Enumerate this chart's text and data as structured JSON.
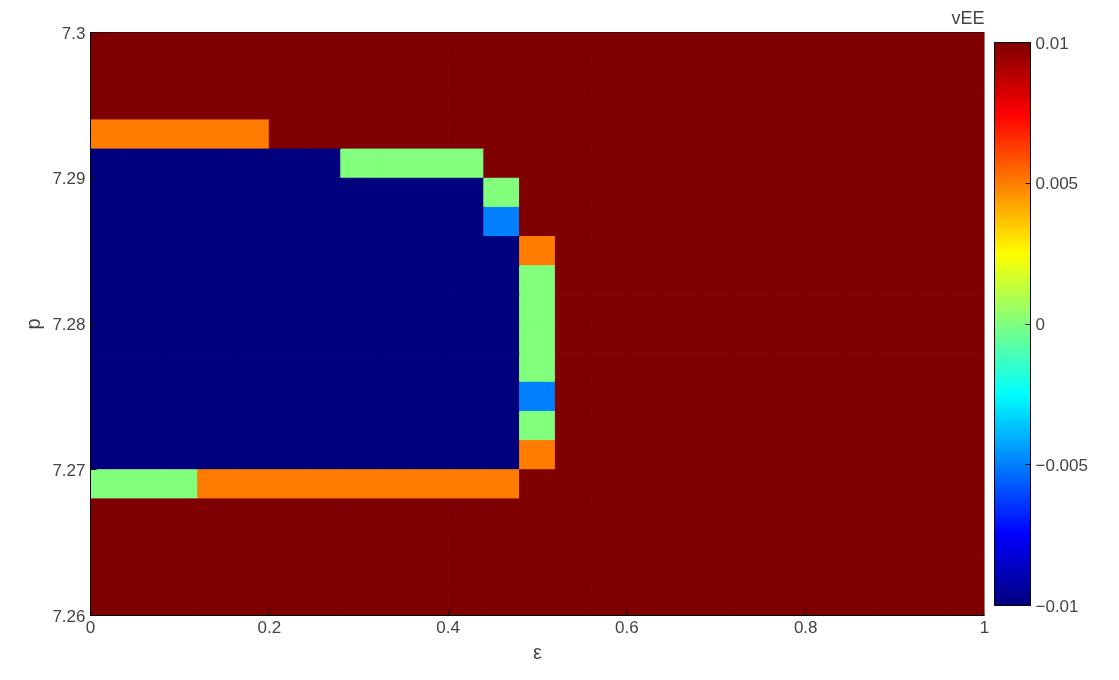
{
  "chart_data": {
    "type": "heatmap",
    "xlabel": "ε",
    "ylabel": "p",
    "clabel": "vEE",
    "xlim": [
      0,
      1
    ],
    "xticks": [
      0,
      0.2,
      0.4,
      0.6,
      0.8,
      1
    ],
    "ylim": [
      7.26,
      7.3
    ],
    "yticks": [
      7.26,
      7.27,
      7.28,
      7.29,
      7.3
    ],
    "clim": [
      -0.01,
      0.01
    ],
    "cticks": [
      -0.01,
      -0.005,
      0,
      0.005,
      0.01
    ],
    "cells": [
      [
        0.01,
        0.01,
        0.01,
        0.01,
        0.01,
        0.01,
        0.01,
        0.01,
        0.01,
        0.01,
        0.01,
        0.01,
        0.01,
        0.01,
        0.01,
        0.01,
        0.01,
        0.01,
        0.01,
        0.01,
        0.01,
        0.01,
        0.01,
        0.01,
        0.01
      ],
      [
        0.01,
        0.01,
        0.01,
        0.01,
        0.01,
        0.01,
        0.01,
        0.01,
        0.01,
        0.01,
        0.01,
        0.01,
        0.01,
        0.01,
        0.01,
        0.01,
        0.01,
        0.01,
        0.01,
        0.01,
        0.01,
        0.01,
        0.01,
        0.01,
        0.01
      ],
      [
        0.01,
        0.01,
        0.01,
        0.01,
        0.01,
        0.01,
        0.01,
        0.01,
        0.01,
        0.01,
        0.01,
        0.01,
        0.01,
        0.01,
        0.01,
        0.01,
        0.01,
        0.01,
        0.01,
        0.01,
        0.01,
        0.01,
        0.01,
        0.01,
        0.01
      ],
      [
        0.005,
        0.005,
        0.005,
        0.005,
        0.005,
        0.01,
        0.01,
        0.01,
        0.01,
        0.01,
        0.01,
        0.01,
        0.01,
        0.01,
        0.01,
        0.01,
        0.01,
        0.01,
        0.01,
        0.01,
        0.01,
        0.01,
        0.01,
        0.01,
        0.01
      ],
      [
        -0.01,
        -0.01,
        -0.01,
        -0.01,
        -0.01,
        -0.01,
        -0.01,
        0,
        0,
        0,
        0,
        0.01,
        0.01,
        0.01,
        0.01,
        0.01,
        0.01,
        0.01,
        0.01,
        0.01,
        0.01,
        0.01,
        0.01,
        0.01,
        0.01
      ],
      [
        -0.01,
        -0.01,
        -0.01,
        -0.01,
        -0.01,
        -0.01,
        -0.01,
        -0.01,
        -0.01,
        -0.01,
        -0.01,
        0,
        0.01,
        0.01,
        0.01,
        0.01,
        0.01,
        0.01,
        0.01,
        0.01,
        0.01,
        0.01,
        0.01,
        0.01,
        0.01
      ],
      [
        -0.01,
        -0.01,
        -0.01,
        -0.01,
        -0.01,
        -0.01,
        -0.01,
        -0.01,
        -0.01,
        -0.01,
        -0.01,
        -0.005,
        0.01,
        0.01,
        0.01,
        0.01,
        0.01,
        0.01,
        0.01,
        0.01,
        0.01,
        0.01,
        0.01,
        0.01,
        0.01
      ],
      [
        -0.01,
        -0.01,
        -0.01,
        -0.01,
        -0.01,
        -0.01,
        -0.01,
        -0.01,
        -0.01,
        -0.01,
        -0.01,
        -0.01,
        0.005,
        0.01,
        0.01,
        0.01,
        0.01,
        0.01,
        0.01,
        0.01,
        0.01,
        0.01,
        0.01,
        0.01,
        0.01
      ],
      [
        -0.01,
        -0.01,
        -0.01,
        -0.01,
        -0.01,
        -0.01,
        -0.01,
        -0.01,
        -0.01,
        -0.01,
        -0.01,
        -0.01,
        0,
        0.01,
        0.01,
        0.01,
        0.01,
        0.01,
        0.01,
        0.01,
        0.01,
        0.01,
        0.01,
        0.01,
        0.01
      ],
      [
        -0.01,
        -0.01,
        -0.01,
        -0.01,
        -0.01,
        -0.01,
        -0.01,
        -0.01,
        -0.01,
        -0.01,
        -0.01,
        -0.01,
        0,
        0.01,
        0.01,
        0.01,
        0.01,
        0.01,
        0.01,
        0.01,
        0.01,
        0.01,
        0.01,
        0.01,
        0.01
      ],
      [
        -0.01,
        -0.01,
        -0.01,
        -0.01,
        -0.01,
        -0.01,
        -0.01,
        -0.01,
        -0.01,
        -0.01,
        -0.01,
        -0.01,
        0,
        0.01,
        0.01,
        0.01,
        0.01,
        0.01,
        0.01,
        0.01,
        0.01,
        0.01,
        0.01,
        0.01,
        0.01
      ],
      [
        -0.01,
        -0.01,
        -0.01,
        -0.01,
        -0.01,
        -0.01,
        -0.01,
        -0.01,
        -0.01,
        -0.01,
        -0.01,
        -0.01,
        0,
        0.01,
        0.01,
        0.01,
        0.01,
        0.01,
        0.01,
        0.01,
        0.01,
        0.01,
        0.01,
        0.01,
        0.01
      ],
      [
        -0.01,
        -0.01,
        -0.01,
        -0.01,
        -0.01,
        -0.01,
        -0.01,
        -0.01,
        -0.01,
        -0.01,
        -0.01,
        -0.01,
        -0.005,
        0.01,
        0.01,
        0.01,
        0.01,
        0.01,
        0.01,
        0.01,
        0.01,
        0.01,
        0.01,
        0.01,
        0.01
      ],
      [
        -0.01,
        -0.01,
        -0.01,
        -0.01,
        -0.01,
        -0.01,
        -0.01,
        -0.01,
        -0.01,
        -0.01,
        -0.01,
        -0.01,
        0,
        0.01,
        0.01,
        0.01,
        0.01,
        0.01,
        0.01,
        0.01,
        0.01,
        0.01,
        0.01,
        0.01,
        0.01
      ],
      [
        -0.01,
        -0.01,
        -0.01,
        -0.01,
        -0.01,
        -0.01,
        -0.01,
        -0.01,
        -0.01,
        -0.01,
        -0.01,
        -0.01,
        0.005,
        0.01,
        0.01,
        0.01,
        0.01,
        0.01,
        0.01,
        0.01,
        0.01,
        0.01,
        0.01,
        0.01,
        0.01
      ],
      [
        0,
        0,
        0,
        0.005,
        0.005,
        0.005,
        0.005,
        0.005,
        0.005,
        0.005,
        0.005,
        0.005,
        0.01,
        0.01,
        0.01,
        0.01,
        0.01,
        0.01,
        0.01,
        0.01,
        0.01,
        0.01,
        0.01,
        0.01,
        0.01
      ],
      [
        0.01,
        0.01,
        0.01,
        0.01,
        0.01,
        0.01,
        0.01,
        0.01,
        0.01,
        0.01,
        0.01,
        0.01,
        0.01,
        0.01,
        0.01,
        0.01,
        0.01,
        0.01,
        0.01,
        0.01,
        0.01,
        0.01,
        0.01,
        0.01,
        0.01
      ],
      [
        0.01,
        0.01,
        0.01,
        0.01,
        0.01,
        0.01,
        0.01,
        0.01,
        0.01,
        0.01,
        0.01,
        0.01,
        0.01,
        0.01,
        0.01,
        0.01,
        0.01,
        0.01,
        0.01,
        0.01,
        0.01,
        0.01,
        0.01,
        0.01,
        0.01
      ],
      [
        0.01,
        0.01,
        0.01,
        0.01,
        0.01,
        0.01,
        0.01,
        0.01,
        0.01,
        0.01,
        0.01,
        0.01,
        0.01,
        0.01,
        0.01,
        0.01,
        0.01,
        0.01,
        0.01,
        0.01,
        0.01,
        0.01,
        0.01,
        0.01,
        0.01
      ],
      [
        0.01,
        0.01,
        0.01,
        0.01,
        0.01,
        0.01,
        0.01,
        0.01,
        0.01,
        0.01,
        0.01,
        0.01,
        0.01,
        0.01,
        0.01,
        0.01,
        0.01,
        0.01,
        0.01,
        0.01,
        0.01,
        0.01,
        0.01,
        0.01,
        0.01
      ]
    ]
  }
}
